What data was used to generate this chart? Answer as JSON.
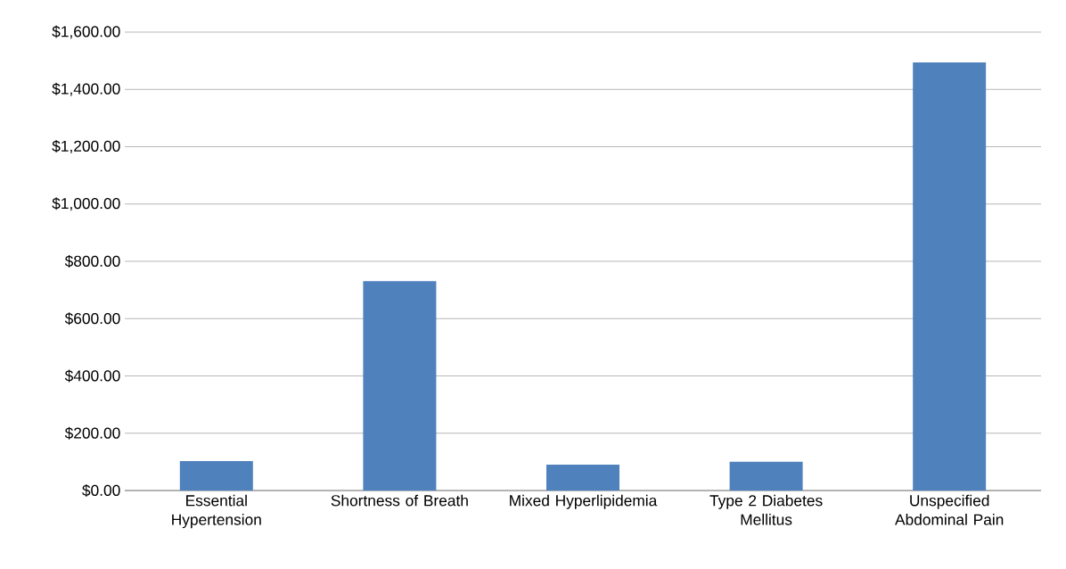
{
  "chart_data": {
    "type": "bar",
    "categories": [
      "Essential Hypertension",
      "Shortness of Breath",
      "Mixed Hyperlipidemia",
      "Type 2 Diabetes Mellitus",
      "Unspecified Abdominal Pain"
    ],
    "values": [
      103,
      731,
      90,
      100,
      1494
    ],
    "color": "#4f81bd",
    "ylim": [
      0,
      1600
    ],
    "yticks": [
      {
        "value": 0,
        "label": "$0.00"
      },
      {
        "value": 200,
        "label": "$200.00"
      },
      {
        "value": 400,
        "label": "$400.00"
      },
      {
        "value": 600,
        "label": "$600.00"
      },
      {
        "value": 800,
        "label": "$800.00"
      },
      {
        "value": 1000,
        "label": "$1,000.00"
      },
      {
        "value": 1200,
        "label": "$1,200.00"
      },
      {
        "value": 1400,
        "label": "$1,400.00"
      },
      {
        "value": 1600,
        "label": "$1,600.00"
      }
    ],
    "grid": "y"
  }
}
